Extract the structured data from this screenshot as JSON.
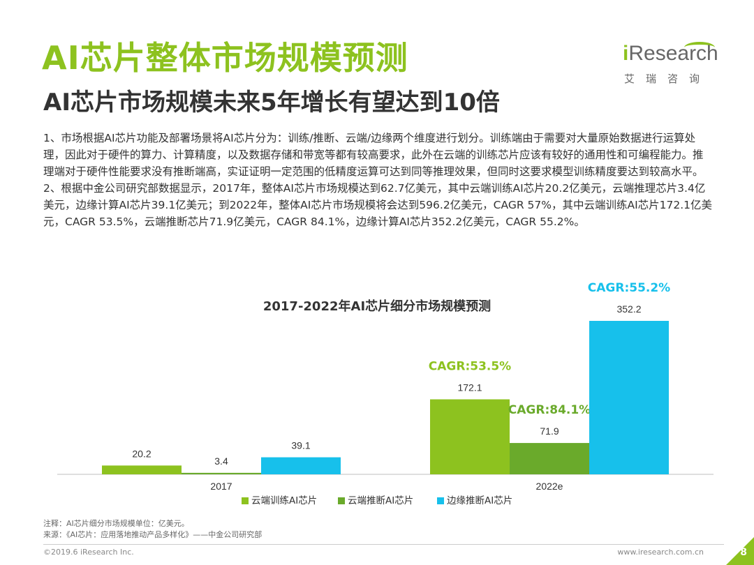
{
  "header": {
    "title": "AI芯片整体市场规模预测",
    "subtitle": "AI芯片市场规模未来5年增长有望达到10倍",
    "logo_text_i": "i",
    "logo_text_rest": "Research",
    "logo_cn": "艾瑞咨询"
  },
  "body": {
    "paragraph1": "1、市场根据AI芯片功能及部署场景将AI芯片分为：训练/推断、云端/边缘两个维度进行划分。训练端由于需要对大量原始数据进行运算处理，因此对于硬件的算力、计算精度，以及数据存储和带宽等都有较高要求，此外在云端的训练芯片应该有较好的通用性和可编程能力。推理端对于硬件性能要求没有推断端高，实证证明一定范围的低精度运算可达到同等推理效果，但同时这要求模型训练精度要达到较高水平。",
    "paragraph2": "2、根据中金公司研究部数据显示，2017年，整体AI芯片市场规模达到62.7亿美元，其中云端训练AI芯片20.2亿美元，云端推理芯片3.4亿美元，边缘计算AI芯片39.1亿美元；到2022年，整体AI芯片市场规模将会达到596.2亿美元，CAGR 57%，其中云端训练AI芯片172.1亿美元，CAGR 53.5%，云端推断芯片71.9亿美元，CAGR 84.1%，边缘计算AI芯片352.2亿美元，CAGR 55.2%。"
  },
  "chart_data": {
    "type": "bar",
    "title": "2017-2022年AI芯片细分市场规模预测",
    "categories": [
      "2017",
      "2022e"
    ],
    "series": [
      {
        "name": "云端训练AI芯片",
        "values": [
          20.2,
          172.1
        ],
        "color": "#8dc21f",
        "cagr": "CAGR:53.5%",
        "cagr_color": "#8dc21f"
      },
      {
        "name": "云端推断AI芯片",
        "values": [
          3.4,
          71.9
        ],
        "color": "#6aaa2b",
        "cagr": "CAGR:84.1%",
        "cagr_color": "#6aaa2b"
      },
      {
        "name": "边缘推断AI芯片",
        "values": [
          39.1,
          352.2
        ],
        "color": "#17c0eb",
        "cagr": "CAGR:55.2%",
        "cagr_color": "#17c0eb"
      }
    ],
    "ylim": [
      0,
      352.2
    ],
    "legend_position": "bottom",
    "grid": false
  },
  "notes": {
    "note": "注释：AI芯片细分市场规模单位：亿美元。",
    "source": "来源：《AI芯片：应用落地推动产品多样化》——中金公司研究部"
  },
  "footer": {
    "copyright": "©2019.6 iResearch Inc.",
    "website": "www.iresearch.com.cn",
    "page_number": "8"
  }
}
